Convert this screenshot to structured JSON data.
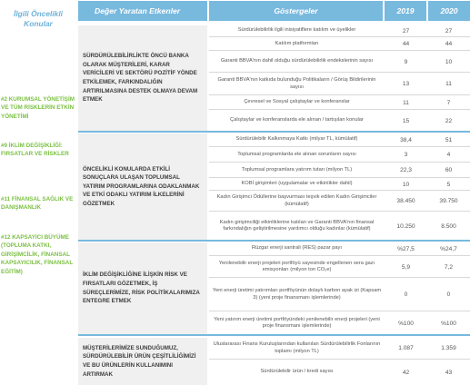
{
  "header": {
    "priority": "İlgili Öncelikli Konular",
    "drivers": "Değer Yaratan Etkenler",
    "indicators": "Göstergeler",
    "year1": "2019",
    "year2": "2020"
  },
  "priorities": [
    "#2 KURUMSAL YÖNETİŞİM VE TÜM RİSKLERİN ETKİN YÖNETİMİ",
    "#9 İKLİM DEĞİŞİKLİĞİ: FIRSATLAR VE RİSKLER",
    "#11 FİNANSAL SAĞLIK VE DANIŞMANLIK",
    "#12 KAPSAYICI BÜYÜME (TOPLUMA KATKI, GİRİŞİMCİLİK, FİNANSAL KAPSAYICILIK, FİNANSAL EĞİTİM)"
  ],
  "drivers": [
    "SÜRDÜRÜLEBİLİRLİKTE ÖNCÜ BANKA OLARAK MÜŞTERİLERİ, KARAR VERİCİLERİ VE SEKTÖRÜ POZİTİF YÖNDE ETKİLEMEK, FARKINDALIĞIN ARTIRILMASINA DESTEK OLMAYA DEVAM ETMEK",
    "ÖNCELİKLİ KONULARDA ETKİLİ SONUÇLARA ULAŞAN TOPLUMSAL YATIRIM PROGRAMLARINA ODAKLANMAK VE ETKİ ODAKLI YATIRIM İLKELERİNİ GÖZETMEK",
    "İKLİM DEĞİŞİKLİĞİNE İLİŞKİN RİSK VE FIRSATLARI GÖZETMEK, İŞ SÜREÇLERİMİZE, RİSK POLİTİKALARIMIZA ENTEGRE ETMEK",
    "MÜŞTERİLERİMİZE SUNDUĞUMUZ, SÜRDÜRÜLEBİLİR ÜRÜN ÇEŞİTLİLİĞİMİZİ VE BU ÜRÜNLERİN KULLANIMINI ARTIRMAK"
  ],
  "rows": [
    {
      "ind": "Sürdürülebilirlik ilgili inisiyatiflere katılım ve üyelikler",
      "y1": "27",
      "y2": "27"
    },
    {
      "ind": "Katılım platformları",
      "y1": "44",
      "y2": "44"
    },
    {
      "ind": "Garanti BBVA'nın dahil olduğu sürdürülebilirlik endekslerinin sayısı",
      "y1": "9",
      "y2": "10"
    },
    {
      "ind": "Garanti BBVA'nın katkıda bulunduğu Politikaların / Görüş Bildirilerinin sayısı",
      "y1": "13",
      "y2": "11"
    },
    {
      "ind": "Çevresel ve Sosyal çalıştaylar ve konferanslar",
      "y1": "11",
      "y2": "7"
    },
    {
      "ind": "Çalıştaylar ve konferanslarda ele alınan / tartışılan konular",
      "y1": "15",
      "y2": "22"
    },
    {
      "ind": "Sürdürülebilir Kalkınmaya Katkı (milyar TL, kümülatif)",
      "y1": "38,4",
      "y2": "51"
    },
    {
      "ind": "Toplumsal programlarda ele alınan sorunların sayısı",
      "y1": "3",
      "y2": "4"
    },
    {
      "ind": "Toplumsal programlara yatırım tutarı (milyon TL)",
      "y1": "22,3",
      "y2": "60"
    },
    {
      "ind": "KOBİ girişimleri (uygulamalar ve etkinlikler dahil)",
      "y1": "10",
      "y2": "5"
    },
    {
      "ind": "Kadın Girişimci Ödüllerine başvurması teşvik edilen Kadın Girişimciler (kümülatif)",
      "y1": "38.450",
      "y2": "39.750"
    },
    {
      "ind": "Kadın girişimciliği etkinliklerine katılan ve Garanti BBVA'nın finansal farkındalığın geliştirilmesine yardımcı olduğu kadınlar (kümülatif)",
      "y1": "10.250",
      "y2": "8.500"
    },
    {
      "ind": "Rüzgar enerji santrali (RES) pazar payı",
      "y1": "%27,5",
      "y2": "%24,7"
    },
    {
      "ind": "Yenilenebilir enerji projeleri portföyü sayesinde engellenen sera gazı emisyonları (milyon ton CO₂e)",
      "y1": "5,9",
      "y2": "7,2"
    },
    {
      "ind": "Yeni enerji üretimi yatırımları portföyünün dolaylı karbon ayak izi (Kapsam 3) (yeni proje finansmanı işlemlerinde)",
      "y1": "0",
      "y2": "0"
    },
    {
      "ind": "Yeni yatırım enerji üretimi portföyündeki yenilenebilir enerji projeleri (yeni proje finansmanı işlemlerinde)",
      "y1": "%100",
      "y2": "%100"
    },
    {
      "ind": "Uluslararası Finans Kuruluşlarından kullanılan Sürdürülebilirlik Fonlarının toplamı (milyon TL)",
      "y1": "1.087",
      "y2": "1.359"
    },
    {
      "ind": "Sürdürülebilir ürün / kredi sayısı",
      "y1": "42",
      "y2": "43"
    }
  ]
}
